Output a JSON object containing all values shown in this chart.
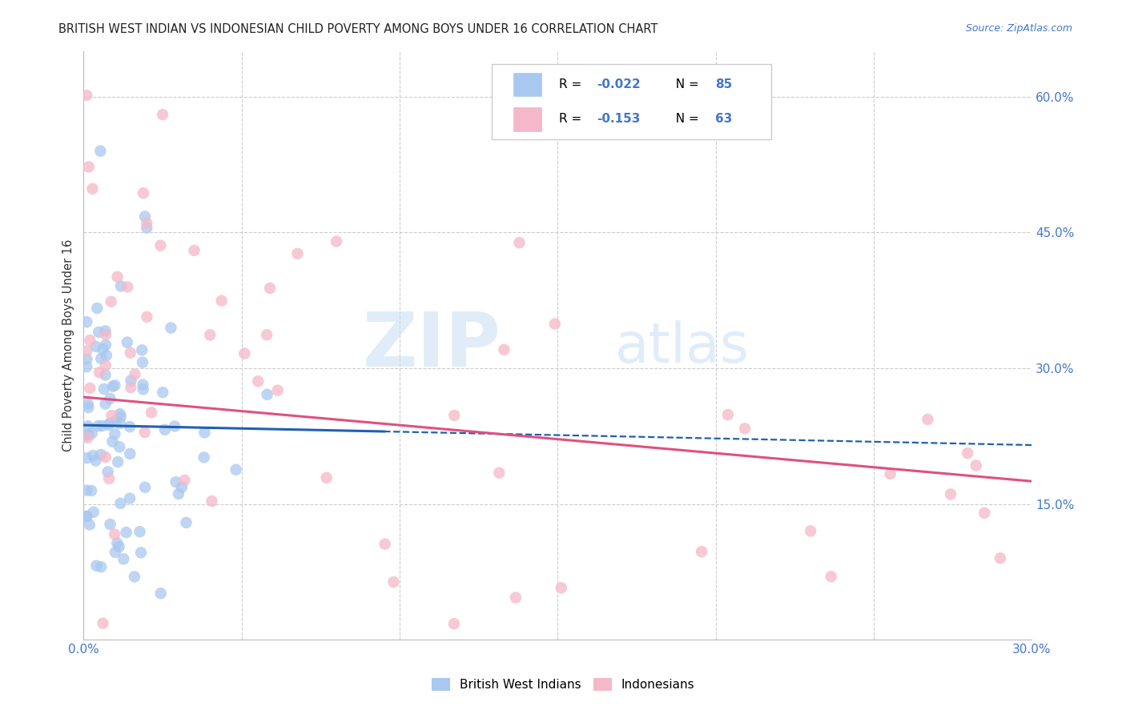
{
  "title": "BRITISH WEST INDIAN VS INDONESIAN CHILD POVERTY AMONG BOYS UNDER 16 CORRELATION CHART",
  "source": "Source: ZipAtlas.com",
  "ylabel": "Child Poverty Among Boys Under 16",
  "xlim": [
    0.0,
    0.3
  ],
  "ylim": [
    0.0,
    0.65
  ],
  "yticks_right": [
    0.15,
    0.3,
    0.45,
    0.6
  ],
  "ytick_right_labels": [
    "15.0%",
    "30.0%",
    "45.0%",
    "60.0%"
  ],
  "grid_color": "#cccccc",
  "background_color": "#ffffff",
  "blue_color": "#a8c8f0",
  "pink_color": "#f5b8c8",
  "blue_line_color": "#2060b0",
  "pink_line_color": "#e05080",
  "blue_R": -0.022,
  "blue_N": 85,
  "pink_R": -0.153,
  "pink_N": 63,
  "legend_label_blue": "British West Indians",
  "legend_label_pink": "Indonesians",
  "watermark_zip": "ZIP",
  "watermark_atlas": "atlas",
  "title_color": "#222222",
  "source_color": "#4477cc",
  "axis_tick_color": "#4477cc",
  "ylabel_color": "#333333"
}
